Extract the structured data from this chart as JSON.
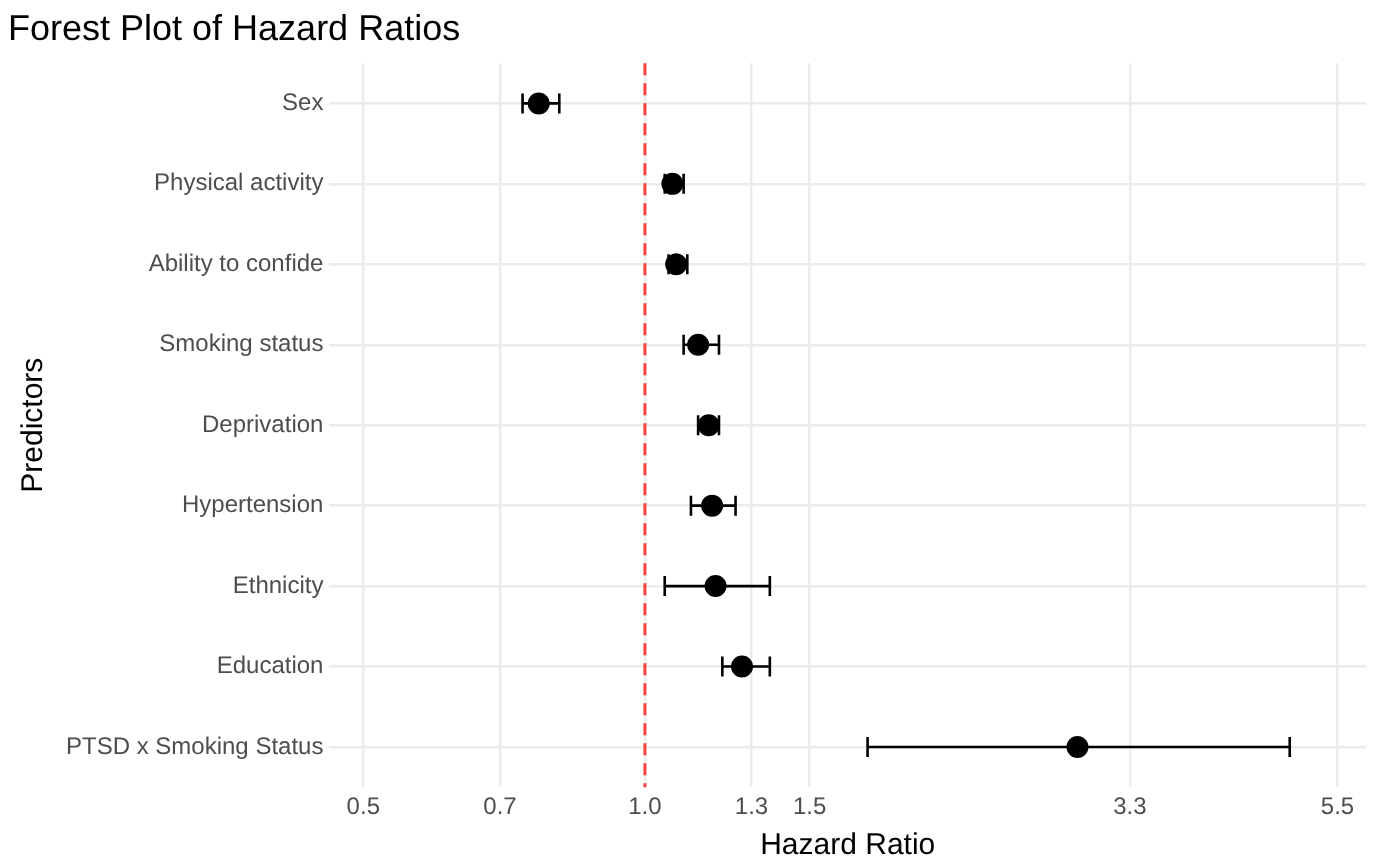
{
  "chart_data": {
    "type": "scatter",
    "title": "Forest Plot of Hazard Ratios",
    "xlabel": "Hazard Ratio",
    "ylabel": "Predictors",
    "categories": [
      "Sex",
      "Physical activity",
      "Ability to confide",
      "Smoking status",
      "Deprivation",
      "Hypertension",
      "Ethnicity",
      "Education",
      "PTSD x Smoking Status"
    ],
    "values": [
      0.77,
      1.07,
      1.08,
      1.14,
      1.17,
      1.18,
      1.19,
      1.27,
      2.9
    ],
    "errors": [
      [
        0.74,
        0.81
      ],
      [
        1.05,
        1.1
      ],
      [
        1.06,
        1.11
      ],
      [
        1.1,
        1.2
      ],
      [
        1.14,
        1.2
      ],
      [
        1.12,
        1.25
      ],
      [
        1.05,
        1.36
      ],
      [
        1.21,
        1.36
      ],
      [
        1.73,
        4.89
      ]
    ],
    "color": "#000000",
    "orientation": "horizontal",
    "marker": "circle",
    "log": "x",
    "xlim": [
      0.46,
      5.9
    ],
    "xticks": [
      0.5,
      0.7,
      {
        "value": 1,
        "label": "1.0"
      },
      1.3,
      1.5,
      3.3,
      5.5
    ],
    "ref_lines": [
      {
        "axis": "x",
        "value": 1,
        "color": "#f8423a",
        "line_style": "dashed"
      }
    ],
    "grid": true,
    "legend": false
  }
}
